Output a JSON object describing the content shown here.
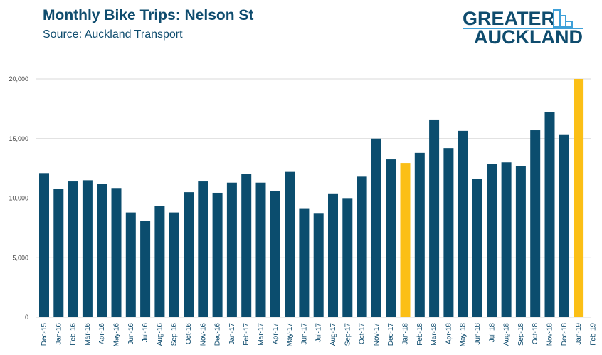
{
  "chart_data": {
    "type": "bar",
    "title": "Monthly Bike Trips: Nelson St",
    "subtitle": "Source: Auckland Transport",
    "xlabel": "",
    "ylabel": "",
    "ylim": [
      0,
      20000
    ],
    "yticks": [
      "0",
      "5,000",
      "10,000",
      "15,000",
      "20,000"
    ],
    "ytick_values": [
      0,
      5000,
      10000,
      15000,
      20000
    ],
    "grid": true,
    "categories": [
      "Dec-15",
      "Jan-16",
      "Feb-16",
      "Mar-16",
      "Apr-16",
      "May-16",
      "Jun-16",
      "Jul-16",
      "Aug-16",
      "Sep-16",
      "Oct-16",
      "Nov-16",
      "Dec-16",
      "Jan-17",
      "Feb-17",
      "Mar-17",
      "Apr-17",
      "May-17",
      "Jun-17",
      "Jul-17",
      "Aug-17",
      "Sep-17",
      "Oct-17",
      "Nov-17",
      "Dec-17",
      "Jan-18",
      "Feb-18",
      "Mar-18",
      "Apr-18",
      "May-18",
      "Jun-18",
      "Jul-18",
      "Aug-18",
      "Sep-18",
      "Oct-18",
      "Nov-18",
      "Dec-18",
      "Jan-19",
      "Feb-19"
    ],
    "values": [
      12100,
      10750,
      11400,
      11500,
      11200,
      10850,
      8800,
      8100,
      9350,
      8800,
      10500,
      11400,
      10450,
      11300,
      12000,
      11300,
      10600,
      12200,
      9100,
      8700,
      10400,
      9950,
      11800,
      15000,
      13250,
      12950,
      13800,
      16600,
      14200,
      15650,
      11600,
      12850,
      13000,
      12700,
      15700,
      17250,
      15300,
      20000,
      null
    ],
    "highlight": [
      "Jan-18",
      "Jan-19"
    ],
    "colors": {
      "bar": "#0b4d6e",
      "highlight": "#fbbf16",
      "grid": "#d9d9d9"
    }
  },
  "logo": {
    "line1": "GREATER",
    "line2": "AUCKLAND"
  }
}
